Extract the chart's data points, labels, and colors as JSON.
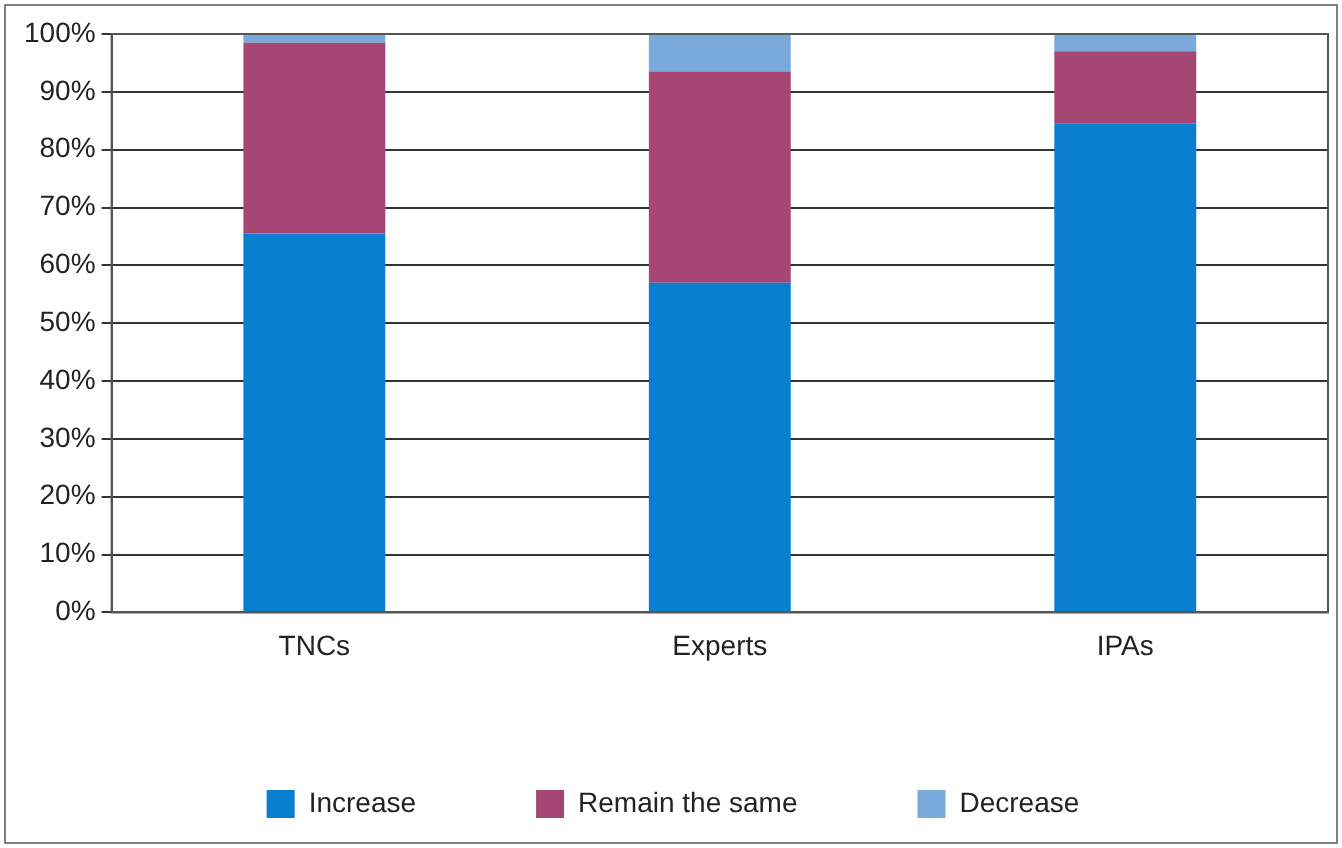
{
  "chart_data": {
    "type": "bar",
    "stacked": true,
    "categories": [
      "TNCs",
      "Experts",
      "IPAs"
    ],
    "series": [
      {
        "name": "Increase",
        "color": "#0a7fcf",
        "values": [
          65.5,
          57,
          84.5
        ]
      },
      {
        "name": "Remain the same",
        "color": "#a64675",
        "values": [
          33,
          36.5,
          12.5
        ]
      },
      {
        "name": "Decrease",
        "color": "#7aaadc",
        "values": [
          1.5,
          6.5,
          3
        ]
      }
    ],
    "ylim": [
      0,
      100
    ],
    "yticks": [
      {
        "value": 0,
        "label": "0%"
      },
      {
        "value": 10,
        "label": "10%"
      },
      {
        "value": 20,
        "label": "20%"
      },
      {
        "value": 30,
        "label": "30%"
      },
      {
        "value": 40,
        "label": "40%"
      },
      {
        "value": 50,
        "label": "50%"
      },
      {
        "value": 60,
        "label": "60%"
      },
      {
        "value": 70,
        "label": "70%"
      },
      {
        "value": 80,
        "label": "80%"
      },
      {
        "value": 90,
        "label": "90%"
      },
      {
        "value": 100,
        "label": "100%"
      }
    ],
    "grid": "y",
    "legend": "bottom"
  }
}
